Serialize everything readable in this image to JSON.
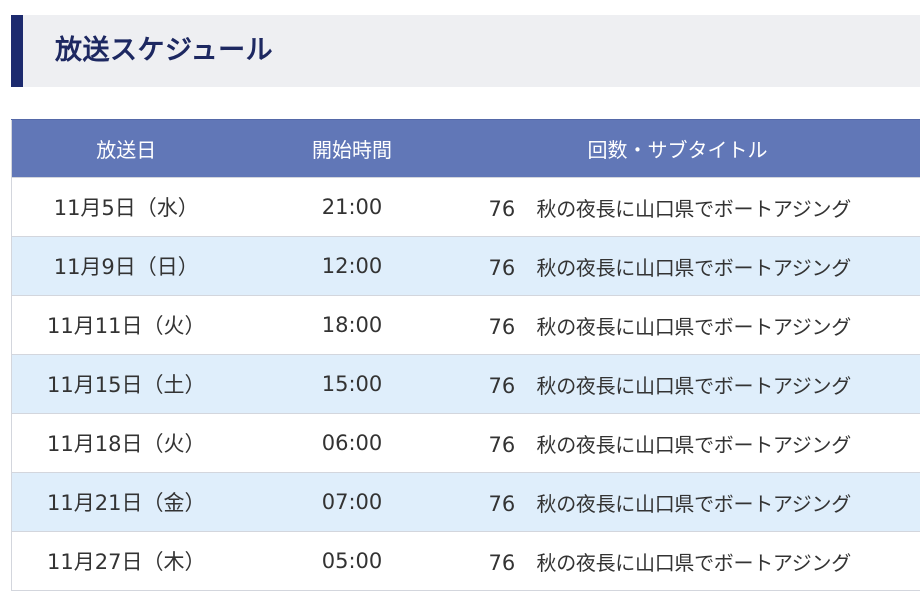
{
  "header": {
    "title": "放送スケジュール"
  },
  "table": {
    "columns": [
      "放送日",
      "開始時間",
      "回数・サブタイトル"
    ],
    "rows": [
      {
        "date": "11月5日（水）",
        "time": "21:00",
        "episode": "76",
        "subtitle": "秋の夜長に山口県でボートアジング"
      },
      {
        "date": "11月9日（日）",
        "time": "12:00",
        "episode": "76",
        "subtitle": "秋の夜長に山口県でボートアジング"
      },
      {
        "date": "11月11日（火）",
        "time": "18:00",
        "episode": "76",
        "subtitle": "秋の夜長に山口県でボートアジング"
      },
      {
        "date": "11月15日（土）",
        "time": "15:00",
        "episode": "76",
        "subtitle": "秋の夜長に山口県でボートアジング"
      },
      {
        "date": "11月18日（火）",
        "time": "06:00",
        "episode": "76",
        "subtitle": "秋の夜長に山口県でボートアジング"
      },
      {
        "date": "11月21日（金）",
        "time": "07:00",
        "episode": "76",
        "subtitle": "秋の夜長に山口県でボートアジング"
      },
      {
        "date": "11月27日（木）",
        "time": "05:00",
        "episode": "76",
        "subtitle": "秋の夜長に山口県でボートアジング"
      }
    ]
  },
  "colors": {
    "accent_bar": "#1c2a6e",
    "header_bg": "#eeeff2",
    "title_text": "#1d2861",
    "table_header_bg": "#6177b7",
    "alt_row_bg": "#dfeefb"
  }
}
